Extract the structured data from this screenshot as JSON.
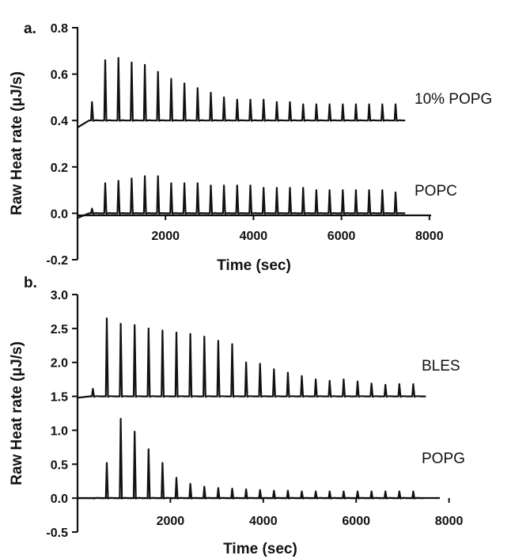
{
  "chart_data": [
    {
      "type": "line",
      "panel_label": "a.",
      "xlabel": "Time (sec)",
      "ylabel": "Raw Heat rate (μJ/s)",
      "xlim": [
        0,
        8000
      ],
      "ylim": [
        -0.2,
        0.8
      ],
      "x_ticks": [
        "2000",
        "4000",
        "6000",
        "8000"
      ],
      "y_ticks": [
        "-0.2",
        "0.0",
        "0.2",
        "0.4",
        "0.6",
        "0.8"
      ],
      "injection_times": [
        330,
        630,
        930,
        1230,
        1530,
        1830,
        2130,
        2430,
        2730,
        3030,
        3330,
        3630,
        3930,
        4230,
        4530,
        4830,
        5130,
        5430,
        5730,
        6030,
        6330,
        6630,
        6930,
        7230
      ],
      "series": [
        {
          "name": "10% POPG",
          "baseline": 0.4,
          "start_value": 0.37,
          "end_time": 7450,
          "peak_values": [
            0.48,
            0.66,
            0.67,
            0.65,
            0.64,
            0.61,
            0.58,
            0.56,
            0.54,
            0.52,
            0.5,
            0.49,
            0.49,
            0.49,
            0.48,
            0.48,
            0.47,
            0.47,
            0.47,
            0.47,
            0.47,
            0.47,
            0.47,
            0.47
          ]
        },
        {
          "name": "POPC",
          "baseline": 0.0,
          "start_value": -0.02,
          "end_time": 7450,
          "peak_values": [
            0.02,
            0.13,
            0.14,
            0.15,
            0.16,
            0.16,
            0.13,
            0.13,
            0.13,
            0.12,
            0.12,
            0.12,
            0.12,
            0.11,
            0.11,
            0.11,
            0.11,
            0.1,
            0.1,
            0.1,
            0.1,
            0.1,
            0.1,
            0.09
          ]
        }
      ]
    },
    {
      "type": "line",
      "panel_label": "b.",
      "xlabel": "Time (sec)",
      "ylabel": "Raw Heat rate (μJ/s)",
      "xlim": [
        0,
        8000
      ],
      "ylim": [
        -0.5,
        3.0
      ],
      "x_ticks": [
        "2000",
        "4000",
        "6000",
        "8000"
      ],
      "y_ticks": [
        "-0.5",
        "0.0",
        "0.5",
        "1.0",
        "1.5",
        "2.0",
        "2.5",
        "3.0"
      ],
      "injection_times": [
        330,
        630,
        930,
        1230,
        1530,
        1830,
        2130,
        2430,
        2730,
        3030,
        3330,
        3630,
        3930,
        4230,
        4530,
        4830,
        5130,
        5430,
        5730,
        6030,
        6330,
        6630,
        6930,
        7230
      ],
      "series": [
        {
          "name": "BLES",
          "baseline": 1.5,
          "start_value": 1.48,
          "end_time": 7500,
          "peak_values": [
            1.61,
            2.65,
            2.57,
            2.55,
            2.5,
            2.47,
            2.44,
            2.42,
            2.38,
            2.32,
            2.27,
            2.0,
            1.98,
            1.9,
            1.85,
            1.8,
            1.75,
            1.73,
            1.75,
            1.72,
            1.69,
            1.67,
            1.68,
            1.68
          ]
        },
        {
          "name": "POPG",
          "baseline": 0.0,
          "start_value": 0.0,
          "end_time": 7450,
          "peak_values": [
            0.0,
            0.52,
            1.17,
            0.98,
            0.72,
            0.52,
            0.3,
            0.21,
            0.17,
            0.15,
            0.14,
            0.13,
            0.12,
            0.11,
            0.11,
            0.1,
            0.1,
            0.1,
            0.1,
            0.1,
            0.1,
            0.1,
            0.1,
            0.1
          ]
        }
      ]
    }
  ]
}
